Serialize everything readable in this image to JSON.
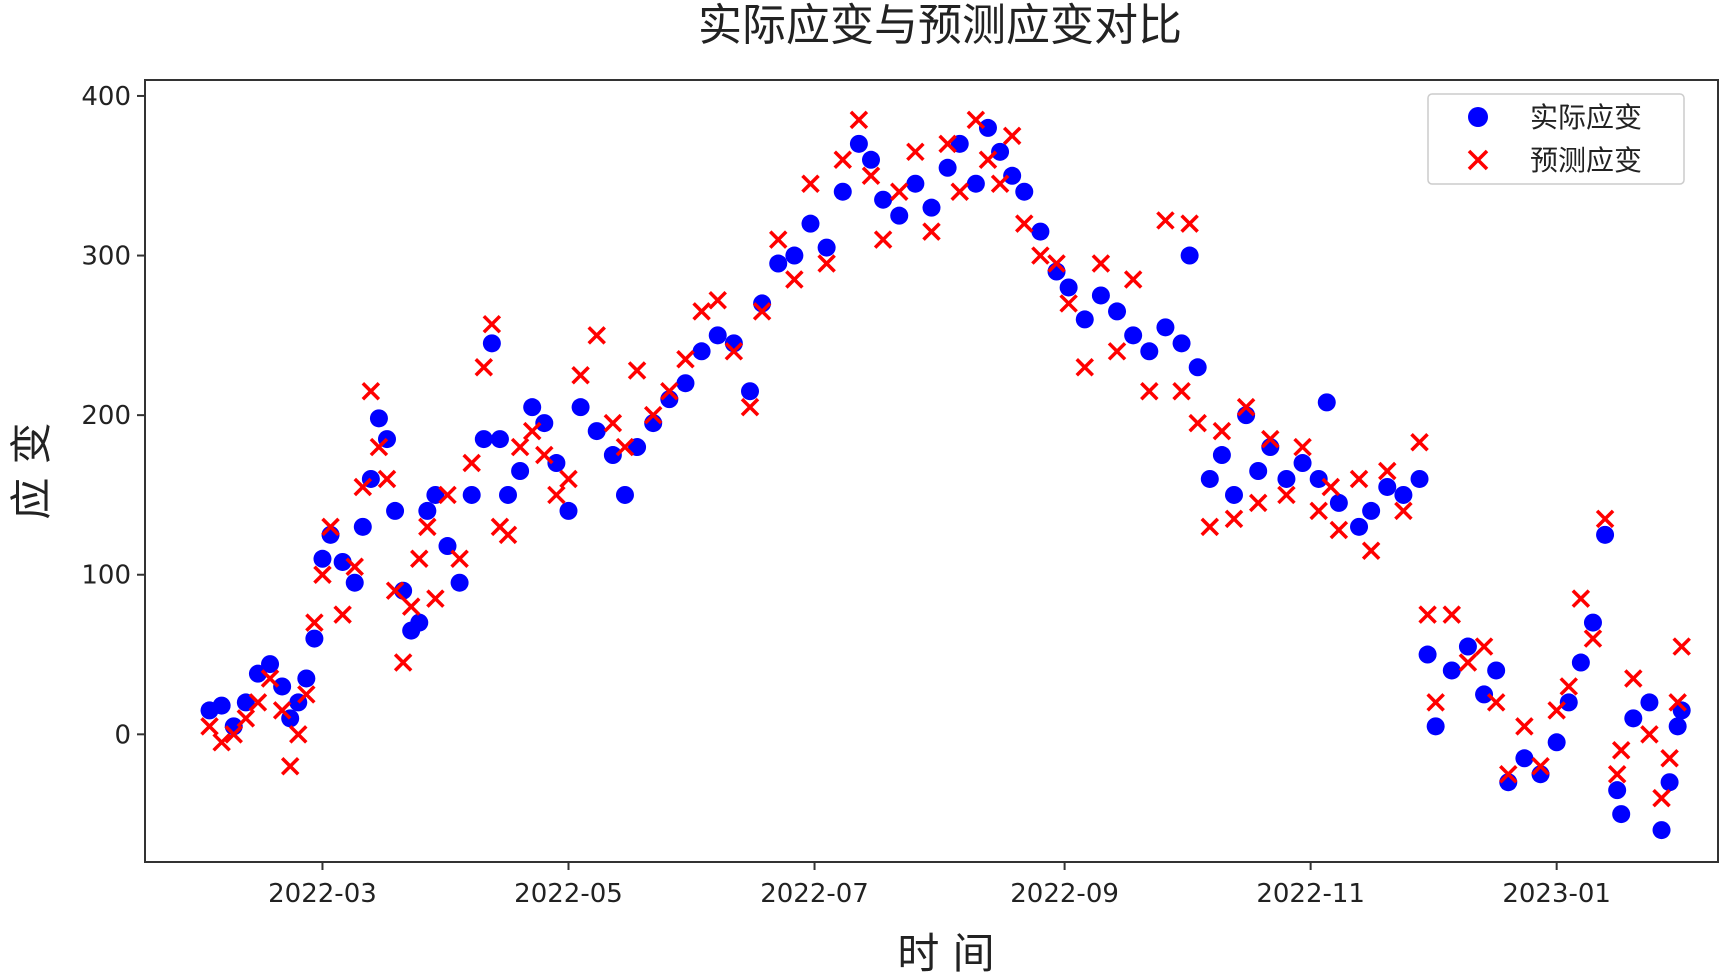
{
  "chart_data": {
    "type": "scatter",
    "title": "实际应变与预测应变对比",
    "xlabel": "时 间",
    "ylabel": "应 变",
    "x_range": [
      "2022-01-16",
      "2023-02-10"
    ],
    "ylim": [
      -80,
      410
    ],
    "x_ticks": [
      {
        "date": "2022-03-01",
        "label": "2022-03"
      },
      {
        "date": "2022-05-01",
        "label": "2022-05"
      },
      {
        "date": "2022-07-01",
        "label": "2022-07"
      },
      {
        "date": "2022-09-01",
        "label": "2022-09"
      },
      {
        "date": "2022-11-01",
        "label": "2022-11"
      },
      {
        "date": "2023-01-01",
        "label": "2023-01"
      }
    ],
    "y_ticks": [
      0,
      100,
      200,
      300,
      400
    ],
    "grid": false,
    "legend_position": "top-right",
    "series": [
      {
        "name": "实际应变",
        "marker": "circle",
        "color": "#0000ff",
        "points": [
          [
            "2022-02-01",
            15
          ],
          [
            "2022-02-04",
            18
          ],
          [
            "2022-02-07",
            5
          ],
          [
            "2022-02-10",
            20
          ],
          [
            "2022-02-13",
            38
          ],
          [
            "2022-02-16",
            44
          ],
          [
            "2022-02-19",
            30
          ],
          [
            "2022-02-21",
            10
          ],
          [
            "2022-02-23",
            20
          ],
          [
            "2022-02-25",
            35
          ],
          [
            "2022-02-27",
            60
          ],
          [
            "2022-03-01",
            110
          ],
          [
            "2022-03-03",
            125
          ],
          [
            "2022-03-06",
            108
          ],
          [
            "2022-03-09",
            95
          ],
          [
            "2022-03-11",
            130
          ],
          [
            "2022-03-13",
            160
          ],
          [
            "2022-03-15",
            198
          ],
          [
            "2022-03-17",
            185
          ],
          [
            "2022-03-19",
            140
          ],
          [
            "2022-03-21",
            90
          ],
          [
            "2022-03-23",
            65
          ],
          [
            "2022-03-25",
            70
          ],
          [
            "2022-03-27",
            140
          ],
          [
            "2022-03-29",
            150
          ],
          [
            "2022-04-01",
            118
          ],
          [
            "2022-04-04",
            95
          ],
          [
            "2022-04-07",
            150
          ],
          [
            "2022-04-10",
            185
          ],
          [
            "2022-04-12",
            245
          ],
          [
            "2022-04-14",
            185
          ],
          [
            "2022-04-16",
            150
          ],
          [
            "2022-04-19",
            165
          ],
          [
            "2022-04-22",
            205
          ],
          [
            "2022-04-25",
            195
          ],
          [
            "2022-04-28",
            170
          ],
          [
            "2022-05-01",
            140
          ],
          [
            "2022-05-04",
            205
          ],
          [
            "2022-05-08",
            190
          ],
          [
            "2022-05-12",
            175
          ],
          [
            "2022-05-15",
            150
          ],
          [
            "2022-05-18",
            180
          ],
          [
            "2022-05-22",
            195
          ],
          [
            "2022-05-26",
            210
          ],
          [
            "2022-05-30",
            220
          ],
          [
            "2022-06-03",
            240
          ],
          [
            "2022-06-07",
            250
          ],
          [
            "2022-06-11",
            245
          ],
          [
            "2022-06-15",
            215
          ],
          [
            "2022-06-18",
            270
          ],
          [
            "2022-06-22",
            295
          ],
          [
            "2022-06-26",
            300
          ],
          [
            "2022-06-30",
            320
          ],
          [
            "2022-07-04",
            305
          ],
          [
            "2022-07-08",
            340
          ],
          [
            "2022-07-12",
            370
          ],
          [
            "2022-07-15",
            360
          ],
          [
            "2022-07-18",
            335
          ],
          [
            "2022-07-22",
            325
          ],
          [
            "2022-07-26",
            345
          ],
          [
            "2022-07-30",
            330
          ],
          [
            "2022-08-03",
            355
          ],
          [
            "2022-08-06",
            370
          ],
          [
            "2022-08-10",
            345
          ],
          [
            "2022-08-13",
            380
          ],
          [
            "2022-08-16",
            365
          ],
          [
            "2022-08-19",
            350
          ],
          [
            "2022-08-22",
            340
          ],
          [
            "2022-08-26",
            315
          ],
          [
            "2022-08-30",
            290
          ],
          [
            "2022-09-02",
            280
          ],
          [
            "2022-09-06",
            260
          ],
          [
            "2022-09-10",
            275
          ],
          [
            "2022-09-14",
            265
          ],
          [
            "2022-09-18",
            250
          ],
          [
            "2022-09-22",
            240
          ],
          [
            "2022-09-26",
            255
          ],
          [
            "2022-09-30",
            245
          ],
          [
            "2022-10-02",
            300
          ],
          [
            "2022-10-04",
            230
          ],
          [
            "2022-10-07",
            160
          ],
          [
            "2022-10-10",
            175
          ],
          [
            "2022-10-13",
            150
          ],
          [
            "2022-10-16",
            200
          ],
          [
            "2022-10-19",
            165
          ],
          [
            "2022-10-22",
            180
          ],
          [
            "2022-10-26",
            160
          ],
          [
            "2022-10-30",
            170
          ],
          [
            "2022-11-03",
            160
          ],
          [
            "2022-11-05",
            208
          ],
          [
            "2022-11-08",
            145
          ],
          [
            "2022-11-13",
            130
          ],
          [
            "2022-11-16",
            140
          ],
          [
            "2022-11-20",
            155
          ],
          [
            "2022-11-24",
            150
          ],
          [
            "2022-11-28",
            160
          ],
          [
            "2022-11-30",
            50
          ],
          [
            "2022-12-02",
            5
          ],
          [
            "2022-12-06",
            40
          ],
          [
            "2022-12-10",
            55
          ],
          [
            "2022-12-14",
            25
          ],
          [
            "2022-12-17",
            40
          ],
          [
            "2022-12-20",
            -30
          ],
          [
            "2022-12-24",
            -15
          ],
          [
            "2022-12-28",
            -25
          ],
          [
            "2023-01-01",
            -5
          ],
          [
            "2023-01-04",
            20
          ],
          [
            "2023-01-07",
            45
          ],
          [
            "2023-01-10",
            70
          ],
          [
            "2023-01-13",
            125
          ],
          [
            "2023-01-16",
            -35
          ],
          [
            "2023-01-17",
            -50
          ],
          [
            "2023-01-20",
            10
          ],
          [
            "2023-01-24",
            20
          ],
          [
            "2023-01-27",
            -60
          ],
          [
            "2023-01-29",
            -30
          ],
          [
            "2023-01-31",
            5
          ],
          [
            "2023-02-01",
            15
          ]
        ]
      },
      {
        "name": "预测应变",
        "marker": "x",
        "color": "#ff0000",
        "points": [
          [
            "2022-02-01",
            5
          ],
          [
            "2022-02-04",
            -5
          ],
          [
            "2022-02-07",
            0
          ],
          [
            "2022-02-10",
            10
          ],
          [
            "2022-02-13",
            20
          ],
          [
            "2022-02-16",
            35
          ],
          [
            "2022-02-19",
            15
          ],
          [
            "2022-02-21",
            -20
          ],
          [
            "2022-02-23",
            0
          ],
          [
            "2022-02-25",
            25
          ],
          [
            "2022-02-27",
            70
          ],
          [
            "2022-03-01",
            100
          ],
          [
            "2022-03-03",
            130
          ],
          [
            "2022-03-06",
            75
          ],
          [
            "2022-03-09",
            105
          ],
          [
            "2022-03-11",
            155
          ],
          [
            "2022-03-13",
            215
          ],
          [
            "2022-03-15",
            180
          ],
          [
            "2022-03-17",
            160
          ],
          [
            "2022-03-19",
            90
          ],
          [
            "2022-03-21",
            45
          ],
          [
            "2022-03-23",
            80
          ],
          [
            "2022-03-25",
            110
          ],
          [
            "2022-03-27",
            130
          ],
          [
            "2022-03-29",
            85
          ],
          [
            "2022-04-01",
            150
          ],
          [
            "2022-04-04",
            110
          ],
          [
            "2022-04-07",
            170
          ],
          [
            "2022-04-10",
            230
          ],
          [
            "2022-04-12",
            257
          ],
          [
            "2022-04-14",
            130
          ],
          [
            "2022-04-16",
            125
          ],
          [
            "2022-04-19",
            180
          ],
          [
            "2022-04-22",
            190
          ],
          [
            "2022-04-25",
            175
          ],
          [
            "2022-04-28",
            150
          ],
          [
            "2022-05-01",
            160
          ],
          [
            "2022-05-04",
            225
          ],
          [
            "2022-05-08",
            250
          ],
          [
            "2022-05-12",
            195
          ],
          [
            "2022-05-15",
            180
          ],
          [
            "2022-05-18",
            228
          ],
          [
            "2022-05-22",
            200
          ],
          [
            "2022-05-26",
            215
          ],
          [
            "2022-05-30",
            235
          ],
          [
            "2022-06-03",
            265
          ],
          [
            "2022-06-07",
            272
          ],
          [
            "2022-06-11",
            240
          ],
          [
            "2022-06-15",
            205
          ],
          [
            "2022-06-18",
            265
          ],
          [
            "2022-06-22",
            310
          ],
          [
            "2022-06-26",
            285
          ],
          [
            "2022-06-30",
            345
          ],
          [
            "2022-07-04",
            295
          ],
          [
            "2022-07-08",
            360
          ],
          [
            "2022-07-12",
            385
          ],
          [
            "2022-07-15",
            350
          ],
          [
            "2022-07-18",
            310
          ],
          [
            "2022-07-22",
            340
          ],
          [
            "2022-07-26",
            365
          ],
          [
            "2022-07-30",
            315
          ],
          [
            "2022-08-03",
            370
          ],
          [
            "2022-08-06",
            340
          ],
          [
            "2022-08-10",
            385
          ],
          [
            "2022-08-13",
            360
          ],
          [
            "2022-08-16",
            345
          ],
          [
            "2022-08-19",
            375
          ],
          [
            "2022-08-22",
            320
          ],
          [
            "2022-08-26",
            300
          ],
          [
            "2022-08-30",
            295
          ],
          [
            "2022-09-02",
            270
          ],
          [
            "2022-09-06",
            230
          ],
          [
            "2022-09-10",
            295
          ],
          [
            "2022-09-14",
            240
          ],
          [
            "2022-09-18",
            285
          ],
          [
            "2022-09-22",
            215
          ],
          [
            "2022-09-26",
            322
          ],
          [
            "2022-09-30",
            215
          ],
          [
            "2022-10-02",
            320
          ],
          [
            "2022-10-04",
            195
          ],
          [
            "2022-10-07",
            130
          ],
          [
            "2022-10-10",
            190
          ],
          [
            "2022-10-13",
            135
          ],
          [
            "2022-10-16",
            205
          ],
          [
            "2022-10-19",
            145
          ],
          [
            "2022-10-22",
            185
          ],
          [
            "2022-10-26",
            150
          ],
          [
            "2022-10-30",
            180
          ],
          [
            "2022-11-03",
            140
          ],
          [
            "2022-11-06",
            155
          ],
          [
            "2022-11-08",
            128
          ],
          [
            "2022-11-13",
            160
          ],
          [
            "2022-11-16",
            115
          ],
          [
            "2022-11-20",
            165
          ],
          [
            "2022-11-24",
            140
          ],
          [
            "2022-11-28",
            183
          ],
          [
            "2022-11-30",
            75
          ],
          [
            "2022-12-02",
            20
          ],
          [
            "2022-12-06",
            75
          ],
          [
            "2022-12-10",
            45
          ],
          [
            "2022-12-14",
            55
          ],
          [
            "2022-12-17",
            20
          ],
          [
            "2022-12-20",
            -25
          ],
          [
            "2022-12-24",
            5
          ],
          [
            "2022-12-28",
            -20
          ],
          [
            "2023-01-01",
            15
          ],
          [
            "2023-01-04",
            30
          ],
          [
            "2023-01-07",
            85
          ],
          [
            "2023-01-10",
            60
          ],
          [
            "2023-01-13",
            135
          ],
          [
            "2023-01-16",
            -25
          ],
          [
            "2023-01-17",
            -10
          ],
          [
            "2023-01-20",
            35
          ],
          [
            "2023-01-24",
            0
          ],
          [
            "2023-01-27",
            -40
          ],
          [
            "2023-01-29",
            -15
          ],
          [
            "2023-01-31",
            20
          ],
          [
            "2023-02-01",
            55
          ]
        ]
      }
    ]
  }
}
